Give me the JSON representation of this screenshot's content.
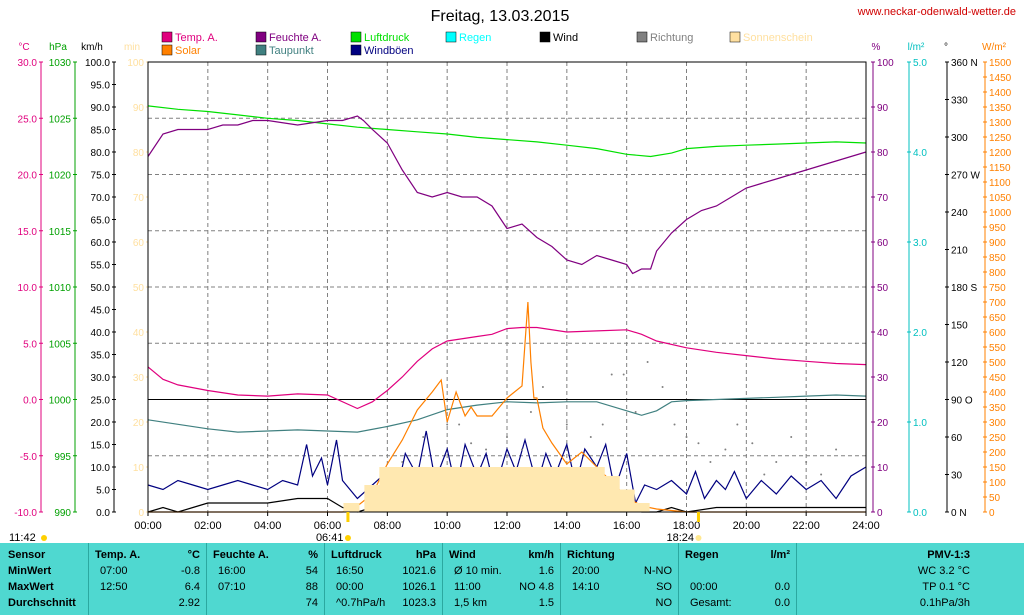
{
  "chart_data": {
    "type": "line",
    "title": "Freitag, 13.03.2015",
    "website": "www.neckar-odenwald-wetter.de",
    "x_ticks": [
      "00:00",
      "02:00",
      "04:00",
      "06:00",
      "08:00",
      "10:00",
      "12:00",
      "14:00",
      "16:00",
      "18:00",
      "20:00",
      "22:00",
      "24:00"
    ],
    "sun_events": {
      "moonrise": "11:42",
      "sunrise": "06:41",
      "sunset": "18:24"
    },
    "legend": [
      {
        "name": "Temp. A.",
        "color": "#e0007e"
      },
      {
        "name": "Feuchte A.",
        "color": "#800080"
      },
      {
        "name": "Luftdruck",
        "color": "#00e000"
      },
      {
        "name": "Regen",
        "color": "#00ffff"
      },
      {
        "name": "Wind",
        "color": "#000000"
      },
      {
        "name": "Richtung",
        "color": "#808080"
      },
      {
        "name": "Sonnenschein",
        "color": "#ffe0a0"
      },
      {
        "name": "Solar",
        "color": "#ff8000"
      },
      {
        "name": "Taupunkt",
        "color": "#408080"
      },
      {
        "name": "Windböen",
        "color": "#000080"
      }
    ],
    "axes": {
      "temp": {
        "unit": "°C",
        "ticks": [
          "30.0",
          "25.0",
          "20.0",
          "15.0",
          "10.0",
          "5.0",
          "0.0",
          "-5.0",
          "-10.0"
        ],
        "ylim": [
          -10,
          30
        ],
        "color": "#e0007e"
      },
      "pressure": {
        "unit": "hPa",
        "ticks": [
          "1030",
          "1025",
          "1020",
          "1015",
          "1010",
          "1005",
          "1000",
          "995",
          "990"
        ],
        "ylim": [
          990,
          1030
        ],
        "color": "#00a000"
      },
      "wind": {
        "unit": "km/h",
        "ticks": [
          "100.0",
          "95.0",
          "90.0",
          "85.0",
          "80.0",
          "75.0",
          "70.0",
          "65.0",
          "60.0",
          "55.0",
          "50.0",
          "45.0",
          "40.0",
          "35.0",
          "30.0",
          "25.0",
          "20.0",
          "15.0",
          "10.0",
          "5.0",
          "0.0"
        ],
        "ylim": [
          0,
          100
        ],
        "color": "#000000"
      },
      "sunshine": {
        "unit": "min",
        "ticks": [
          "100",
          "90",
          "80",
          "70",
          "60",
          "50",
          "40",
          "30",
          "20",
          "10",
          "0"
        ],
        "ylim": [
          0,
          100
        ],
        "color": "#ffe0a0"
      },
      "humidity": {
        "unit": "%",
        "ticks": [
          "100",
          "90",
          "80",
          "70",
          "60",
          "50",
          "40",
          "30",
          "20",
          "10",
          "0"
        ],
        "ylim": [
          0,
          100
        ],
        "color": "#800080"
      },
      "rain": {
        "unit": "l/m²",
        "ticks": [
          "5.0",
          "4.0",
          "3.0",
          "2.0",
          "1.0",
          "0.0"
        ],
        "ylim": [
          0,
          5
        ],
        "color": "#00c0c0"
      },
      "direction": {
        "unit": "°",
        "ticks": [
          "360 N",
          "330",
          "300",
          "270 W",
          "240",
          "210",
          "180 S",
          "150",
          "120",
          "90 O",
          "60",
          "30",
          "0 N"
        ],
        "ylim": [
          0,
          360
        ],
        "color": "#000000"
      },
      "solar": {
        "unit": "W/m²",
        "ticks": [
          "1500",
          "1450",
          "1400",
          "1350",
          "1300",
          "1250",
          "1200",
          "1150",
          "1100",
          "1050",
          "1000",
          "950",
          "900",
          "850",
          "800",
          "750",
          "700",
          "650",
          "600",
          "550",
          "500",
          "450",
          "400",
          "350",
          "300",
          "250",
          "200",
          "150",
          "100",
          "50",
          "0"
        ],
        "ylim": [
          0,
          1500
        ],
        "color": "#ff8000"
      }
    },
    "series": [
      {
        "name": "Luftdruck",
        "axis": "pressure",
        "color": "#00e000",
        "x": [
          0,
          1,
          2,
          3,
          4,
          5,
          6,
          7,
          8,
          9,
          10,
          11,
          12,
          13,
          14,
          15,
          16,
          16.8,
          17.5,
          18,
          19,
          20,
          21,
          22,
          23,
          24
        ],
        "y": [
          1026.1,
          1025.8,
          1025.6,
          1025.3,
          1025.0,
          1024.8,
          1024.5,
          1024.2,
          1024.0,
          1023.8,
          1023.6,
          1023.3,
          1023.1,
          1022.9,
          1022.6,
          1022.3,
          1021.8,
          1021.6,
          1021.9,
          1022.3,
          1022.5,
          1022.6,
          1022.7,
          1022.8,
          1022.9,
          1022.8
        ]
      },
      {
        "name": "Feuchte A.",
        "axis": "humidity",
        "color": "#800080",
        "x": [
          0,
          0.5,
          1,
          1.5,
          2,
          2.5,
          3,
          3.5,
          4,
          5,
          6,
          6.5,
          7,
          7.2,
          7.5,
          8,
          8.5,
          9,
          9.5,
          10,
          10.5,
          11,
          11.5,
          12,
          12.5,
          13,
          13.5,
          14,
          14.5,
          15,
          15.5,
          16,
          16.2,
          16.5,
          16.8,
          17,
          17.5,
          18,
          18.5,
          19,
          19.5,
          20,
          20.5,
          21,
          21.5,
          22,
          22.5,
          23,
          23.5,
          24
        ],
        "y": [
          79,
          84,
          85,
          85,
          85,
          86,
          86,
          87,
          87,
          86,
          87,
          87,
          88,
          87,
          85,
          82,
          76,
          71,
          70,
          71,
          70,
          70,
          68,
          63,
          64,
          61,
          59,
          56,
          55,
          57,
          56,
          55,
          53,
          54,
          54,
          58,
          62,
          65,
          67,
          68,
          70,
          72,
          73,
          74,
          75,
          76,
          77,
          78,
          79,
          80
        ]
      },
      {
        "name": "Temp. A.",
        "axis": "temp",
        "color": "#e0007e",
        "x": [
          0,
          0.5,
          1,
          2,
          3,
          4,
          5,
          6,
          7,
          7.5,
          8,
          8.5,
          9,
          9.5,
          10,
          11,
          11.5,
          12,
          12.5,
          13,
          14,
          15,
          16,
          16.5,
          17,
          18,
          19,
          20,
          21,
          22,
          23,
          24
        ],
        "y": [
          2.9,
          1.8,
          1.3,
          0.8,
          0.4,
          0.3,
          0.5,
          0.4,
          -0.8,
          -0.2,
          0.8,
          2.0,
          3.4,
          4.5,
          5.2,
          5.6,
          5.8,
          6.3,
          6.4,
          6.4,
          6.0,
          6.1,
          6.2,
          5.8,
          5.2,
          4.6,
          4.2,
          3.9,
          3.6,
          3.4,
          3.2,
          3.1
        ]
      },
      {
        "name": "Taupunkt",
        "axis": "temp",
        "color": "#408080",
        "x": [
          0,
          1,
          2,
          3,
          4,
          5,
          6,
          7,
          8,
          9,
          10,
          11,
          12,
          13,
          14,
          15,
          16,
          16.5,
          17,
          17.5,
          18,
          19,
          20,
          21,
          22,
          23,
          24
        ],
        "y": [
          -1.8,
          -2.2,
          -2.6,
          -2.9,
          -2.8,
          -2.7,
          -2.8,
          -2.9,
          -2.4,
          -1.8,
          -0.9,
          -0.5,
          -0.2,
          -0.3,
          -0.2,
          -0.2,
          -1.0,
          -1.4,
          -1.0,
          -0.2,
          -0.1,
          0.0,
          0.1,
          0.2,
          0.3,
          0.4,
          0.3
        ]
      },
      {
        "name": "Windböen",
        "axis": "wind",
        "color": "#000080",
        "x": [
          0,
          0.5,
          1,
          1.5,
          2,
          2.5,
          3,
          3.5,
          4,
          4.5,
          5,
          5.3,
          5.5,
          5.8,
          6,
          6.3,
          6.5,
          7,
          7.5,
          8,
          8.3,
          8.6,
          9,
          9.3,
          9.6,
          10,
          10.3,
          10.6,
          11,
          11.3,
          11.6,
          12,
          12.3,
          12.6,
          13,
          13.3,
          13.6,
          14,
          14.3,
          14.6,
          15,
          15.3,
          15.6,
          16,
          16.3,
          16.6,
          17,
          17.5,
          18,
          18.3,
          18.6,
          19,
          19.3,
          19.6,
          20,
          20.5,
          21,
          21.5,
          22,
          22.5,
          23,
          23.5,
          24
        ],
        "y": [
          6,
          5,
          7,
          6,
          5,
          6,
          7,
          6,
          5,
          7,
          6,
          15,
          8,
          12,
          6,
          16,
          7,
          3,
          6,
          9,
          4,
          13,
          8,
          18,
          7,
          14,
          5,
          15,
          8,
          13,
          5,
          14,
          9,
          16,
          6,
          13,
          8,
          15,
          6,
          14,
          10,
          15,
          5,
          13,
          2,
          6,
          5,
          7,
          4,
          9,
          3,
          7,
          5,
          9,
          3,
          7,
          4,
          8,
          5,
          7,
          3,
          8,
          10
        ]
      },
      {
        "name": "Wind",
        "axis": "wind",
        "color": "#000000",
        "x": [
          0,
          0.5,
          1,
          1.5,
          2,
          3,
          4,
          5,
          6,
          6.5,
          7,
          7.5,
          8,
          8.5,
          9,
          9.5,
          10,
          10.5,
          11,
          11.5,
          12,
          12.5,
          13,
          13.5,
          14,
          14.5,
          15,
          15.5,
          16,
          16.5,
          17,
          17.5,
          18,
          19,
          20,
          21,
          22,
          23,
          24
        ],
        "y": [
          0,
          1,
          0,
          1,
          2,
          2,
          2,
          3,
          3,
          1,
          0,
          1,
          2,
          1,
          3,
          4,
          2,
          3,
          1,
          4,
          2,
          3,
          1,
          4,
          2,
          3,
          1,
          2,
          1,
          0,
          0,
          1,
          0,
          1,
          1,
          1,
          1,
          1,
          1
        ]
      },
      {
        "name": "Solar",
        "axis": "solar",
        "color": "#ff8000",
        "x": [
          0,
          6.5,
          7,
          7.5,
          8,
          8.5,
          9,
          9.5,
          9.8,
          10,
          10.3,
          10.6,
          10.8,
          11,
          11.5,
          12,
          12.5,
          12.7,
          12.8,
          12.9,
          13,
          13.2,
          13.5,
          14,
          14.5,
          15,
          15.5,
          16,
          16.5,
          17,
          17.5,
          18,
          24
        ],
        "y": [
          0,
          0,
          20,
          60,
          160,
          240,
          340,
          400,
          440,
          300,
          400,
          320,
          350,
          320,
          320,
          380,
          420,
          700,
          500,
          380,
          380,
          280,
          230,
          160,
          200,
          150,
          100,
          50,
          20,
          10,
          5,
          0,
          0
        ]
      },
      {
        "name": "Sonnenschein",
        "axis": "sunshine",
        "color": "#ffe0a0",
        "x": [
          6.8,
          7.5,
          8,
          8.5,
          9,
          9.5,
          10,
          10.5,
          11,
          11.5,
          12,
          12.5,
          13,
          13.5,
          14,
          14.5,
          15,
          15.5,
          16,
          16.5,
          17
        ],
        "y": [
          2,
          6,
          10,
          10,
          10,
          10,
          10,
          10,
          10,
          10,
          10,
          10,
          10,
          10,
          10,
          10,
          10,
          8,
          5,
          2,
          0
        ]
      },
      {
        "name": "Richtung",
        "axis": "direction",
        "color": "#808080",
        "style": "dots",
        "x": [
          8.5,
          9.2,
          10,
          10.4,
          10.8,
          11.3,
          12,
          12.5,
          12.8,
          13.2,
          14,
          14.8,
          15.2,
          15.5,
          15.9,
          16.3,
          16.7,
          17.2,
          17.6,
          18,
          18.4,
          18.8,
          19.3,
          19.7,
          20.2,
          20.6,
          21,
          21.5,
          22,
          22.5,
          23
        ],
        "y": [
          40,
          60,
          70,
          70,
          55,
          50,
          60,
          50,
          80,
          100,
          70,
          60,
          70,
          110,
          110,
          80,
          120,
          100,
          70,
          60,
          55,
          40,
          50,
          70,
          55,
          30,
          40,
          60,
          40,
          30,
          50
        ]
      }
    ]
  },
  "table": {
    "headers": {
      "sensor": "Sensor",
      "temp": "Temp. A.",
      "temp_unit": "°C",
      "hum": "Feuchte A.",
      "hum_unit": "%",
      "press": "Luftdruck",
      "press_unit": "hPa",
      "wind": "Wind",
      "wind_unit": "km/h",
      "dir": "Richtung",
      "rain": "Regen",
      "rain_unit": "l/m²",
      "pmv": "PMV-1:3"
    },
    "rows": [
      {
        "label": "MinWert",
        "temp_time": "07:00",
        "temp_val": "-0.8",
        "hum_time": "16:00",
        "hum_val": "54",
        "press_time": "16:50",
        "press_val": "1021.6",
        "wind_time": "Ø 10 min.",
        "wind_val": "1.6",
        "dir_time": "20:00",
        "dir_val": "N-NO",
        "rain_time": "",
        "rain_val": "",
        "pmv": "WC 3.2 °C"
      },
      {
        "label": "MaxWert",
        "temp_time": "12:50",
        "temp_val": "6.4",
        "hum_time": "07:10",
        "hum_val": "88",
        "press_time": "00:00",
        "press_val": "1026.1",
        "wind_time": "11:00",
        "wind_val": "NO 4.8",
        "dir_time": "14:10",
        "dir_val": "SO",
        "rain_time": "00:00",
        "rain_val": "0.0",
        "pmv": "TP 0.1 °C"
      },
      {
        "label": "Durchschnitt",
        "temp_time": "",
        "temp_val": "2.92",
        "hum_time": "",
        "hum_val": "74",
        "press_time": "^0.7hPa/h",
        "press_val": "1023.3",
        "wind_time": "1,5 km",
        "wind_val": "1.5",
        "dir_time": "",
        "dir_val": "NO",
        "rain_time": "Gesamt:",
        "rain_val": "0.0",
        "pmv": "0.1hPa/3h"
      }
    ]
  }
}
